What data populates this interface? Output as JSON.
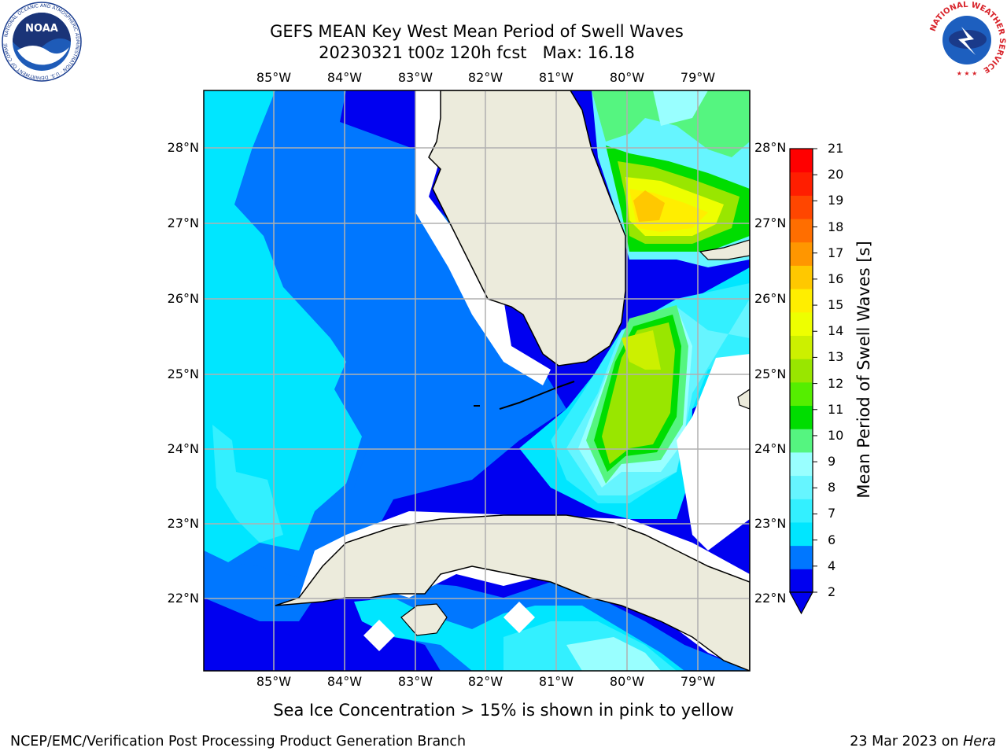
{
  "title": {
    "line1": "GEFS MEAN Key West Mean Period of Swell Waves",
    "line2": "20230321 t00z 120h fcst   Max: 16.18"
  },
  "map": {
    "lon_labels": [
      "85°W",
      "84°W",
      "83°W",
      "82°W",
      "81°W",
      "80°W",
      "79°W"
    ],
    "lat_labels": [
      "28°N",
      "27°N",
      "26°N",
      "25°N",
      "24°N",
      "23°N",
      "22°N"
    ],
    "colors": {
      "land": "#ecebdc",
      "no_data": "#ffffff",
      "grid": "#b0b0b0"
    }
  },
  "colorbar": {
    "label": "Mean Period of Swell Waves [s]",
    "ticks": [
      "21",
      "20",
      "19",
      "18",
      "17",
      "16",
      "15",
      "14",
      "13",
      "12",
      "11",
      "10",
      "9",
      "8",
      "7",
      "6",
      "4",
      "2"
    ],
    "colors": [
      "#0000f0",
      "#0077ff",
      "#00e6ff",
      "#33f0ff",
      "#66f5ff",
      "#99ffff",
      "#55f580",
      "#00dd00",
      "#55ee00",
      "#99e600",
      "#ccf000",
      "#eeff00",
      "#ffee00",
      "#ffc800",
      "#ff9600",
      "#ff6e00",
      "#ff4600",
      "#ff1e00",
      "#ff0000"
    ]
  },
  "logos": {
    "noaa": {
      "text": "NOAA",
      "ring_text": "NATIONAL OCEANIC AND ATMOSPHERIC ADMINISTRATION · U.S. DEPARTMENT OF COMMERCE"
    },
    "nws": {
      "ring_text": "NATIONAL WEATHER SERVICE"
    }
  },
  "note": "Sea Ice Concentration > 15% is shown in pink to yellow",
  "footer": {
    "left": "NCEP/EMC/Verification Post Processing Product Generation Branch",
    "right_date": "23 Mar 2023 on",
    "right_host": "Hera"
  }
}
